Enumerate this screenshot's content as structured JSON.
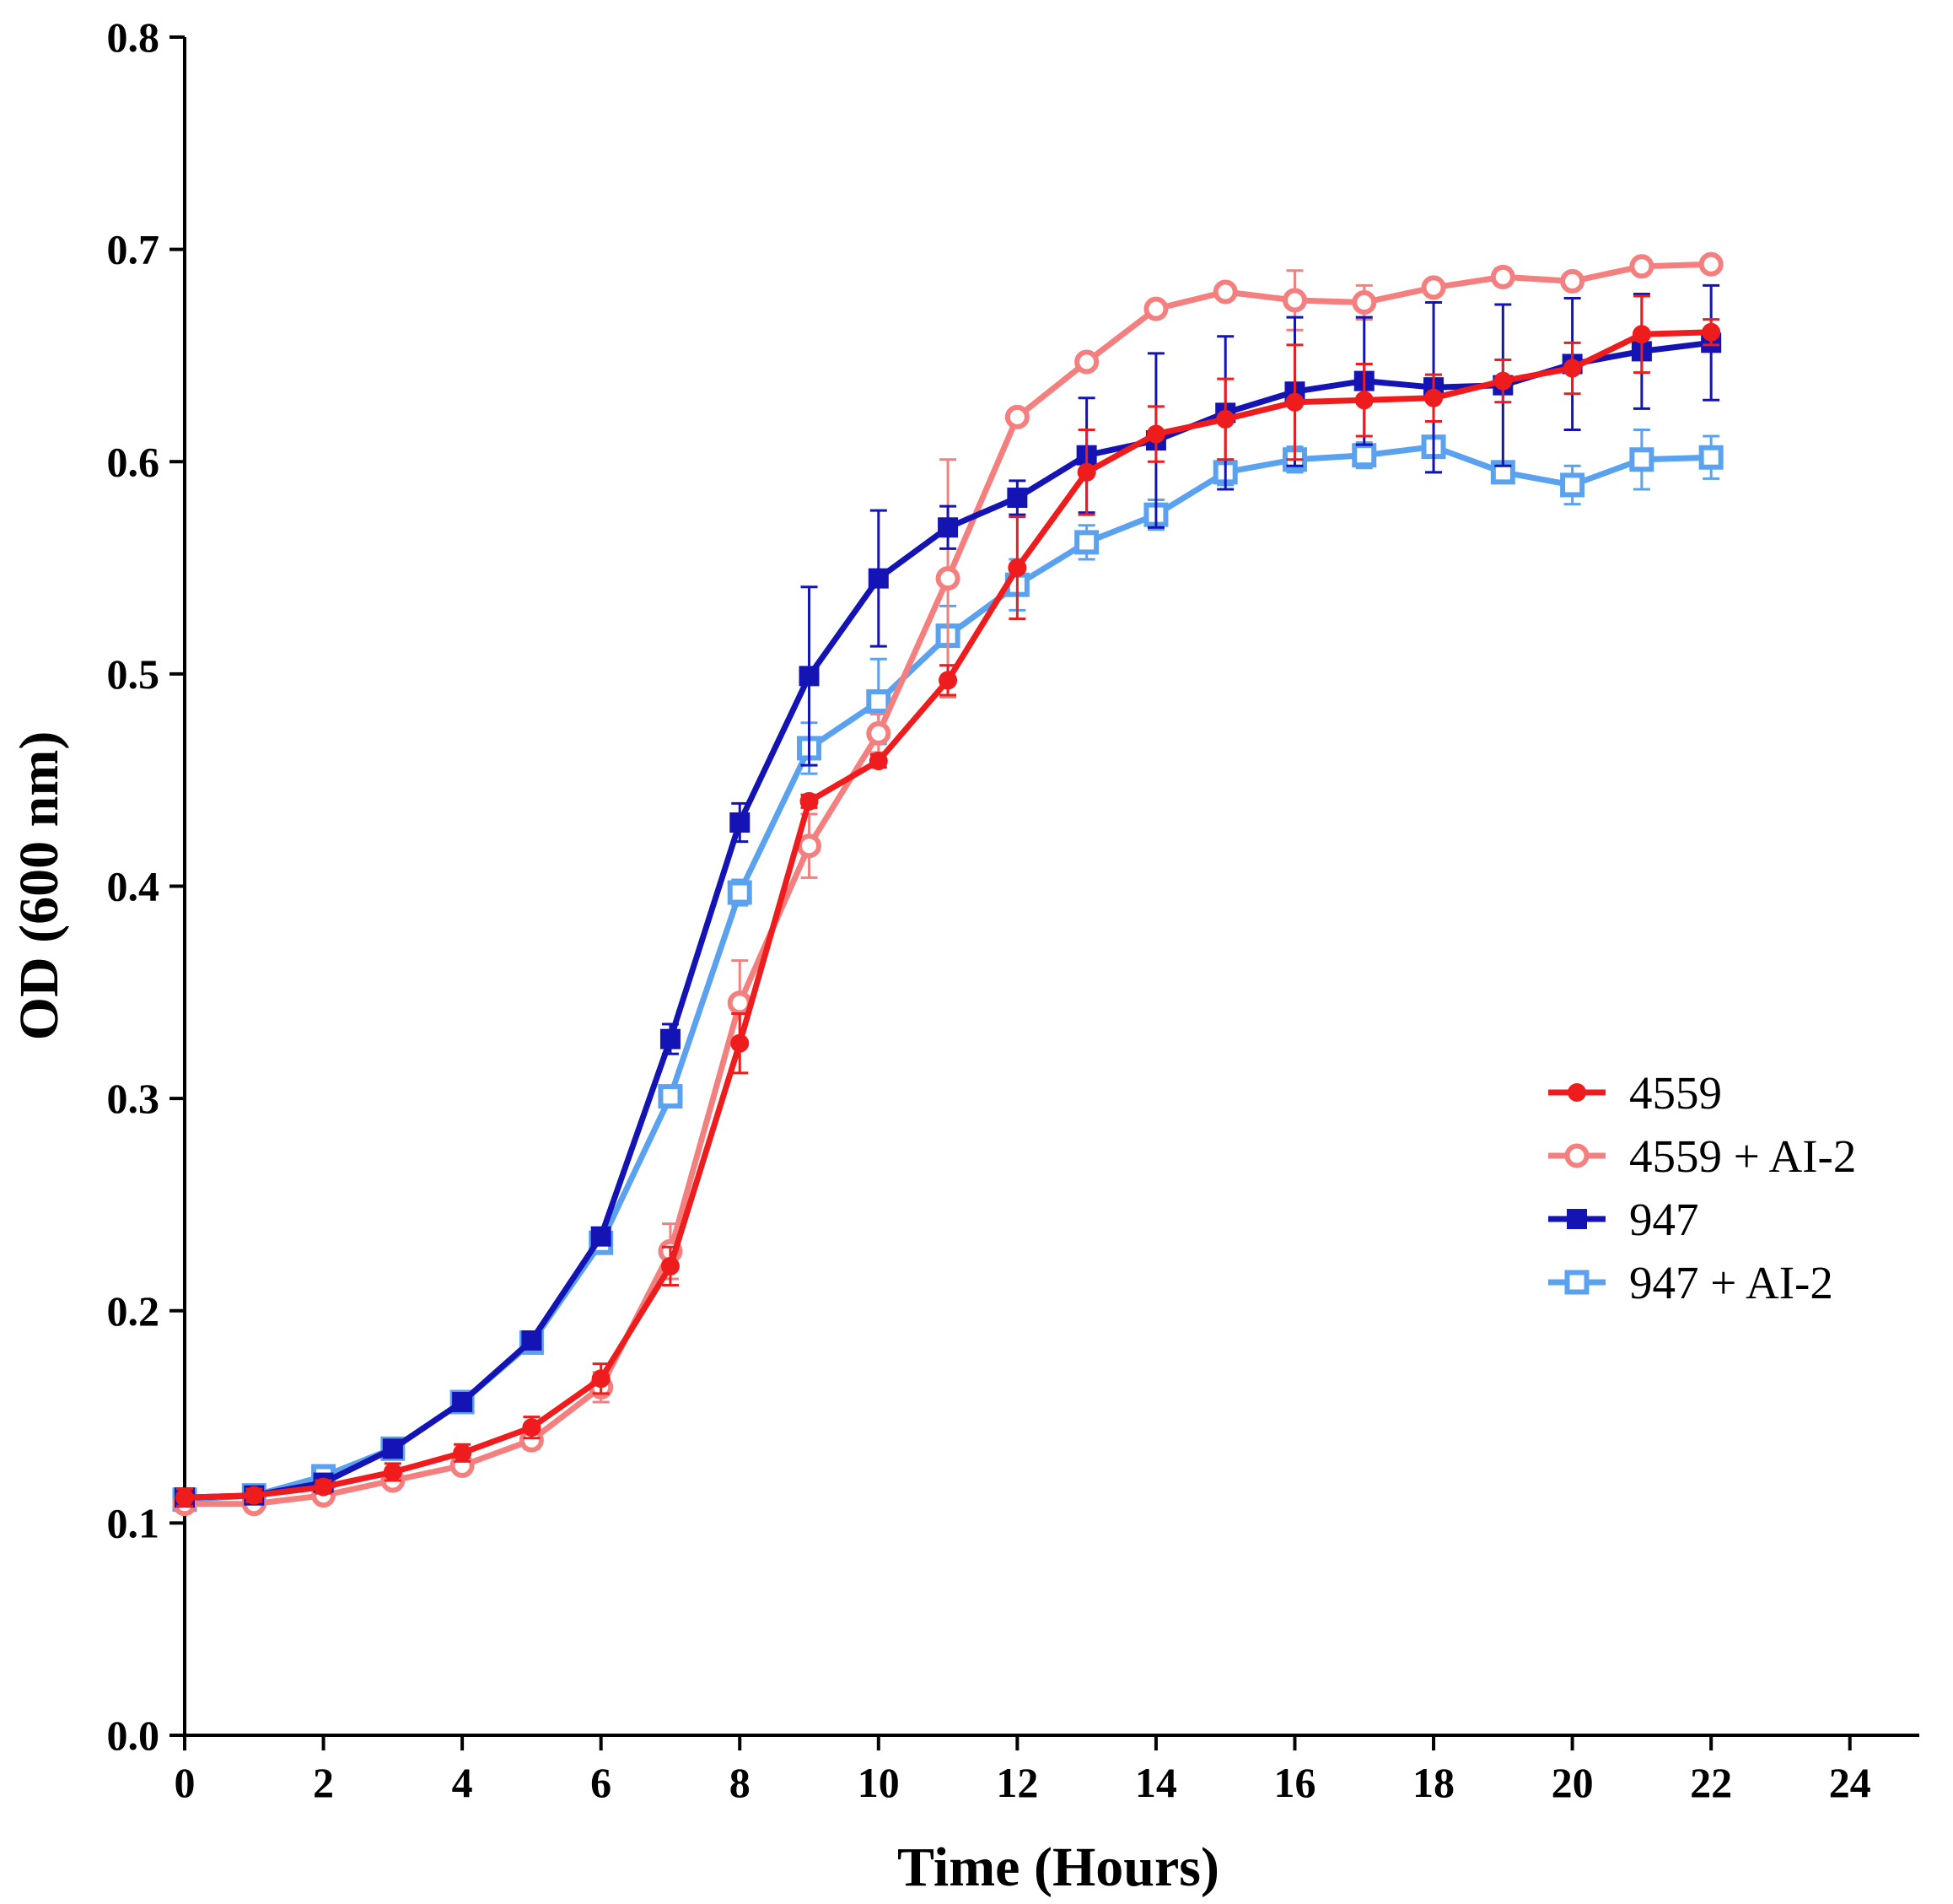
{
  "chart_data": {
    "type": "line",
    "title": "",
    "xlabel": "Time (Hours)",
    "ylabel": "OD (600 nm)",
    "xlim": [
      0,
      25
    ],
    "ylim": [
      0,
      0.8
    ],
    "x_ticks": [
      0,
      2,
      4,
      6,
      8,
      10,
      12,
      14,
      16,
      18,
      20,
      22,
      24
    ],
    "x_tick_labels": [
      "0",
      "2",
      "4",
      "6",
      "8",
      "10",
      "12",
      "14",
      "16",
      "18",
      "20",
      "22",
      "24"
    ],
    "y_ticks": [
      0,
      0.1,
      0.2,
      0.3,
      0.4,
      0.5,
      0.6,
      0.7,
      0.8
    ],
    "y_tick_labels": [
      "0.0",
      "0.1",
      "0.2",
      "0.3",
      "0.4",
      "0.5",
      "0.6",
      "0.7",
      "0.8"
    ],
    "grid": false,
    "legend_position": "center-right",
    "x": [
      0,
      1,
      2,
      3,
      4,
      5,
      6,
      7,
      8,
      9,
      10,
      11,
      12,
      13,
      14,
      15,
      16,
      17,
      18,
      19,
      20,
      21,
      22
    ],
    "series": [
      {
        "name": "947 + AI-2",
        "color": "#5aa2f0",
        "marker": "open-square",
        "values": [
          0.111,
          0.113,
          0.122,
          0.135,
          0.157,
          0.185,
          0.232,
          0.301,
          0.397,
          0.465,
          0.487,
          0.518,
          0.542,
          0.562,
          0.575,
          0.595,
          0.601,
          0.603,
          0.607,
          0.595,
          0.589,
          0.601,
          0.602
        ],
        "errors": [
          0.003,
          0.003,
          0.003,
          0.003,
          0.003,
          0.003,
          0.004,
          0.004,
          0.006,
          0.012,
          0.02,
          0.014,
          0.012,
          0.008,
          0.007,
          0.006,
          0.006,
          0.006,
          0.012,
          0.005,
          0.009,
          0.014,
          0.01
        ]
      },
      {
        "name": "4559 + AI-2",
        "color": "#f47f7f",
        "marker": "open-circle",
        "values": [
          0.109,
          0.109,
          0.113,
          0.12,
          0.127,
          0.139,
          0.164,
          0.228,
          0.345,
          0.419,
          0.472,
          0.545,
          0.621,
          0.647,
          0.672,
          0.68,
          0.676,
          0.675,
          0.682,
          0.687,
          0.685,
          0.692,
          0.693
        ],
        "errors": [
          0.003,
          0.003,
          0.003,
          0.003,
          0.003,
          0.004,
          0.007,
          0.013,
          0.02,
          0.015,
          0.009,
          0.056,
          0.003,
          0.003,
          0.003,
          0.003,
          0.014,
          0.008,
          0.003,
          0.004,
          0.003,
          0.003,
          0.003
        ]
      },
      {
        "name": "947",
        "color": "#1414b4",
        "marker": "filled-square",
        "values": [
          0.112,
          0.113,
          0.119,
          0.135,
          0.157,
          0.186,
          0.235,
          0.328,
          0.43,
          0.499,
          0.545,
          0.569,
          0.583,
          0.603,
          0.61,
          0.623,
          0.633,
          0.638,
          0.635,
          0.636,
          0.646,
          0.652,
          0.656
        ],
        "errors": [
          0.003,
          0.003,
          0.003,
          0.003,
          0.003,
          0.003,
          0.004,
          0.007,
          0.009,
          0.042,
          0.032,
          0.01,
          0.008,
          0.027,
          0.041,
          0.036,
          0.035,
          0.03,
          0.04,
          0.038,
          0.031,
          0.027,
          0.027
        ]
      },
      {
        "name": "4559",
        "color": "#ee1c1c",
        "marker": "filled-circle",
        "values": [
          0.112,
          0.113,
          0.117,
          0.124,
          0.133,
          0.145,
          0.168,
          0.221,
          0.326,
          0.44,
          0.459,
          0.497,
          0.55,
          0.595,
          0.613,
          0.62,
          0.628,
          0.629,
          0.63,
          0.638,
          0.644,
          0.66,
          0.661
        ],
        "errors": [
          0.004,
          0.003,
          0.003,
          0.004,
          0.004,
          0.005,
          0.007,
          0.009,
          0.014,
          0.003,
          0.003,
          0.007,
          0.024,
          0.02,
          0.013,
          0.019,
          0.027,
          0.017,
          0.011,
          0.01,
          0.012,
          0.018,
          0.006
        ]
      }
    ],
    "legend": [
      {
        "label": "4559",
        "color": "#ee1c1c",
        "marker": "filled-circle"
      },
      {
        "label": "4559 + AI-2",
        "color": "#f47f7f",
        "marker": "open-circle"
      },
      {
        "label": "947",
        "color": "#1414b4",
        "marker": "filled-square"
      },
      {
        "label": "947 + AI-2",
        "color": "#5aa2f0",
        "marker": "open-square"
      }
    ]
  }
}
